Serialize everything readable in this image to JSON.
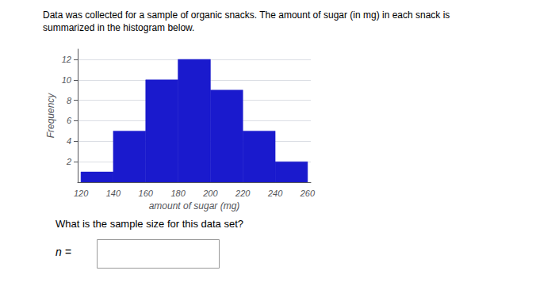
{
  "chart_data": {
    "type": "histogram",
    "title": "Data was collected for a sample of organic snacks. The amount of sugar (in mg) in each snack is",
    "subtitle": "summarized in the histogram below.",
    "x_label": "amount of sugar (mg)",
    "y_label": "Frequency",
    "bins": [
      120,
      140,
      160,
      180,
      200,
      220,
      240,
      260
    ],
    "values": [
      1,
      5,
      10,
      12,
      9,
      5,
      2
    ],
    "color": "#1a1acd",
    "xlim": [
      118,
      262
    ],
    "xticks": [
      120,
      140,
      160,
      180,
      200,
      220,
      240,
      260
    ],
    "ylim": [
      0,
      13
    ],
    "yticks": [
      2,
      4,
      6,
      8,
      10,
      12
    ],
    "grid": true,
    "annotations": [
      "What is the sample size for this data set?",
      "n ="
    ]
  }
}
